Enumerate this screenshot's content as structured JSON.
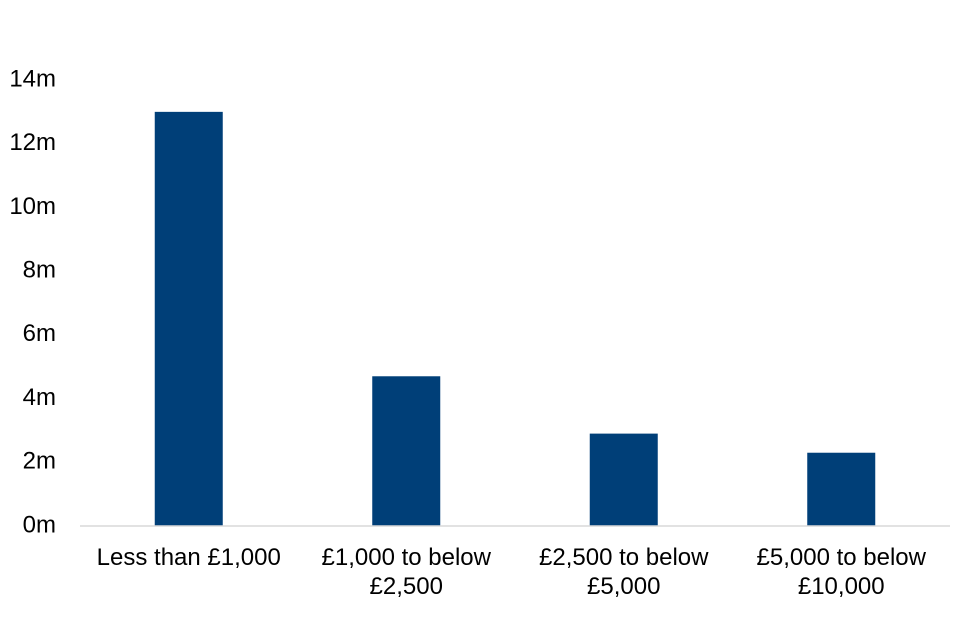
{
  "chart_data": {
    "type": "bar",
    "categories": [
      "Less than £1,000",
      "£1,000 to below £2,500",
      "£2,500 to below £5,000",
      "£5,000 to below £10,000"
    ],
    "values": [
      13,
      4.7,
      2.9,
      2.3
    ],
    "color": "#003f78",
    "ylim": [
      0,
      14
    ],
    "yticks": [
      {
        "value": 0,
        "label": "0m"
      },
      {
        "value": 2,
        "label": "2m"
      },
      {
        "value": 4,
        "label": "4m"
      },
      {
        "value": 6,
        "label": "6m"
      },
      {
        "value": 8,
        "label": "8m"
      },
      {
        "value": 10,
        "label": "10m"
      },
      {
        "value": 12,
        "label": "12m"
      },
      {
        "value": 14,
        "label": "14m"
      }
    ],
    "grid": false
  }
}
